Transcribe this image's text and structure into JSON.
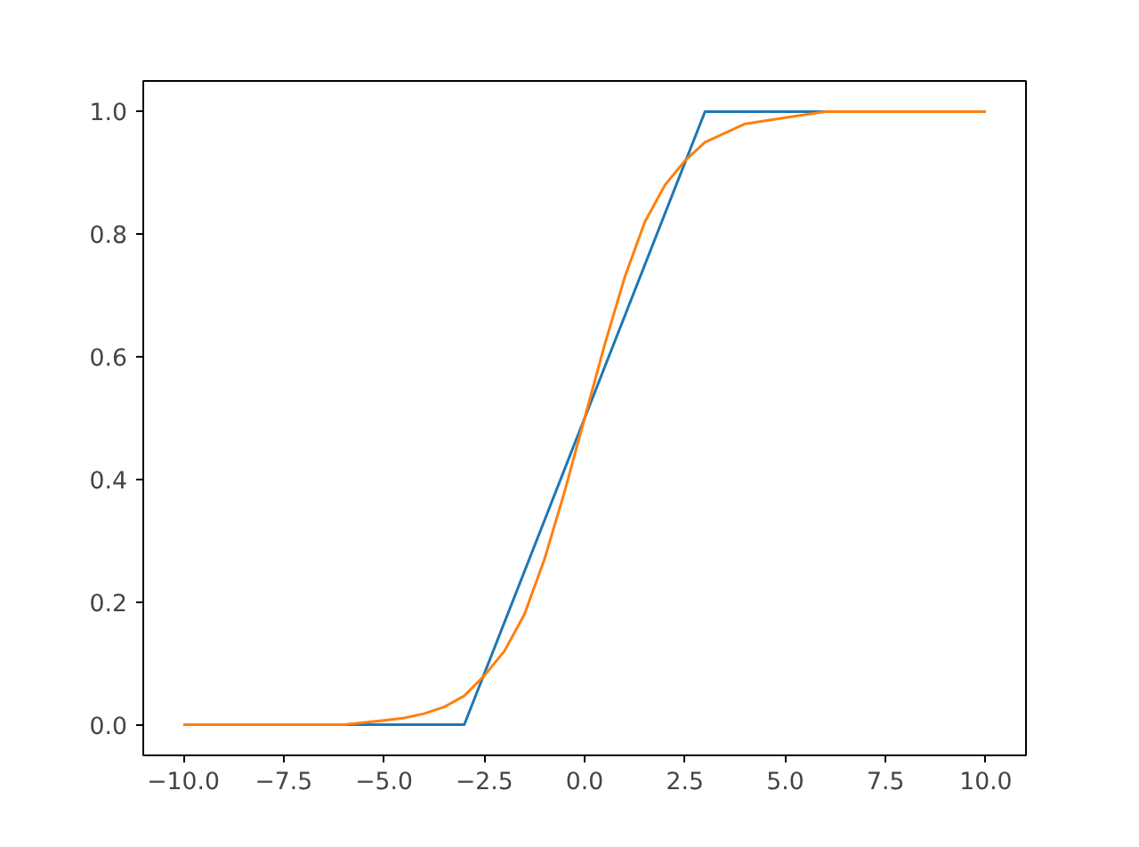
{
  "chart_data": {
    "type": "line",
    "xlim": [
      -11,
      11
    ],
    "ylim": [
      -0.05,
      1.05
    ],
    "xticks": [
      {
        "value": -10,
        "label": "−10.0"
      },
      {
        "value": -7.5,
        "label": "−7.5"
      },
      {
        "value": -5,
        "label": "−5.0"
      },
      {
        "value": -2.5,
        "label": "−2.5"
      },
      {
        "value": 0,
        "label": "0.0"
      },
      {
        "value": 2.5,
        "label": "2.5"
      },
      {
        "value": 5,
        "label": "5.0"
      },
      {
        "value": 7.5,
        "label": "7.5"
      },
      {
        "value": 10,
        "label": "10.0"
      }
    ],
    "yticks": [
      {
        "value": 0,
        "label": "0.0"
      },
      {
        "value": 0.2,
        "label": "0.2"
      },
      {
        "value": 0.4,
        "label": "0.4"
      },
      {
        "value": 0.6,
        "label": "0.6"
      },
      {
        "value": 0.8,
        "label": "0.8"
      },
      {
        "value": 1,
        "label": "1.0"
      }
    ],
    "grid": false,
    "series": [
      {
        "color": "#1f77b4",
        "x": [
          -10,
          -3,
          3,
          10
        ],
        "values": [
          0,
          0,
          1,
          1
        ]
      },
      {
        "color": "#ff7f0e",
        "x": [
          -10,
          -8,
          -6,
          -5,
          -4.5,
          -4,
          -3.5,
          -3,
          -2.5,
          -2,
          -1.5,
          -1,
          -0.5,
          0,
          0.5,
          1,
          1.5,
          2,
          2.5,
          3,
          4,
          5,
          6,
          8,
          10
        ],
        "values": [
          0.0,
          0.0,
          0.0,
          0.007,
          0.011,
          0.018,
          0.029,
          0.047,
          0.08,
          0.12,
          0.18,
          0.27,
          0.38,
          0.5,
          0.62,
          0.73,
          0.82,
          0.88,
          0.92,
          0.95,
          0.98,
          0.99,
          1.0,
          1.0,
          1.0
        ]
      }
    ]
  }
}
